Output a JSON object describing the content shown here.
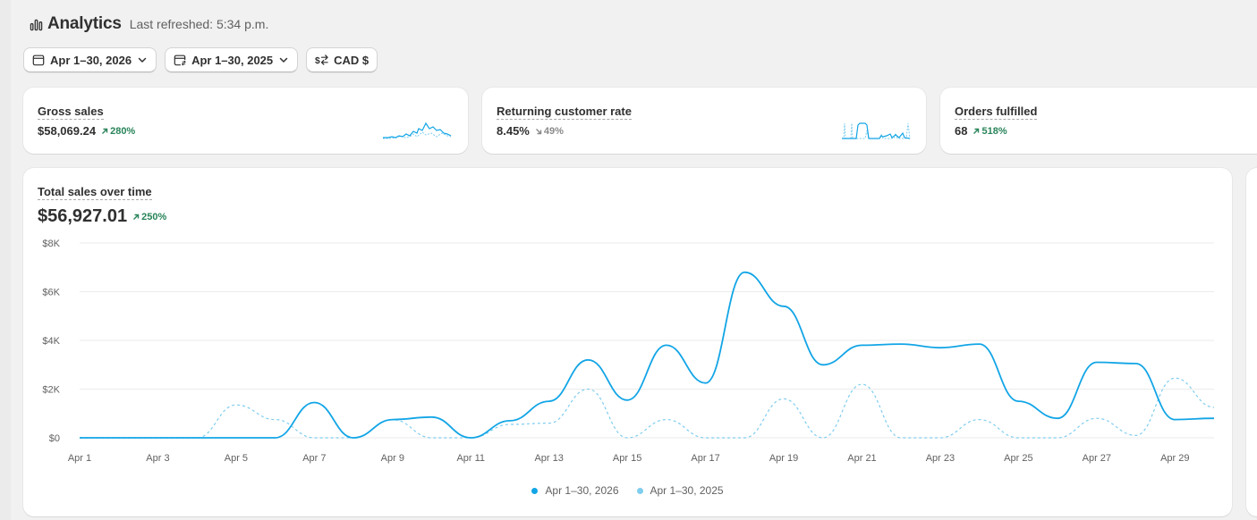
{
  "header": {
    "title": "Analytics",
    "refreshed": "Last refreshed: 5:34 p.m."
  },
  "filters": [
    {
      "label": "Apr 1–30, 2026",
      "icon": "calendar-icon"
    },
    {
      "label": "Apr 1–30, 2025",
      "icon": "calendar-compare-icon"
    },
    {
      "label": "CAD $",
      "icon": "currency-exchange-icon"
    }
  ],
  "metrics": [
    {
      "label": "Gross sales",
      "value": "$58,069.24",
      "delta": "280%",
      "direction": "up"
    },
    {
      "label": "Returning customer rate",
      "value": "8.45%",
      "delta": "49%",
      "direction": "down"
    },
    {
      "label": "Orders fulfilled",
      "value": "68",
      "delta": "518%",
      "direction": "up"
    }
  ],
  "colors": {
    "primary_series": "#12a5e6",
    "comparison_series": "#7fcdef",
    "positive": "#29845a",
    "neutral": "#8a8a8a",
    "gridline": "#ebebeb"
  },
  "chart": {
    "title": "Total sales over time",
    "total": "$56,927.01",
    "delta": "250%",
    "direction": "up"
  },
  "chart_data": {
    "type": "line",
    "title": "Total sales over time",
    "xlabel": "",
    "ylabel": "",
    "ylim": [
      0,
      8000
    ],
    "yticks": [
      0,
      2000,
      4000,
      6000,
      8000
    ],
    "ytick_labels": [
      "$0",
      "$2K",
      "$4K",
      "$6K",
      "$8K"
    ],
    "x": [
      "Apr 1",
      "Apr 2",
      "Apr 3",
      "Apr 4",
      "Apr 5",
      "Apr 6",
      "Apr 7",
      "Apr 8",
      "Apr 9",
      "Apr 10",
      "Apr 11",
      "Apr 12",
      "Apr 13",
      "Apr 14",
      "Apr 15",
      "Apr 16",
      "Apr 17",
      "Apr 18",
      "Apr 19",
      "Apr 20",
      "Apr 21",
      "Apr 22",
      "Apr 23",
      "Apr 24",
      "Apr 25",
      "Apr 26",
      "Apr 27",
      "Apr 28",
      "Apr 29",
      "Apr 30"
    ],
    "xtick_labels": [
      "Apr 1",
      "Apr 3",
      "Apr 5",
      "Apr 7",
      "Apr 9",
      "Apr 11",
      "Apr 13",
      "Apr 15",
      "Apr 17",
      "Apr 19",
      "Apr 21",
      "Apr 23",
      "Apr 25",
      "Apr 27",
      "Apr 29"
    ],
    "grid": true,
    "legend_position": "bottom-center",
    "series": [
      {
        "name": "Apr 1–30, 2026",
        "style": "solid",
        "values": [
          0,
          0,
          0,
          0,
          0,
          0,
          1450,
          0,
          750,
          850,
          0,
          700,
          1500,
          3200,
          1550,
          3800,
          2250,
          6800,
          5400,
          3000,
          3800,
          3850,
          3700,
          3850,
          1500,
          800,
          3100,
          3050,
          750,
          800
        ]
      },
      {
        "name": "Apr 1–30, 2025",
        "style": "dashed",
        "values": [
          0,
          0,
          0,
          0,
          1350,
          750,
          0,
          0,
          750,
          0,
          0,
          550,
          600,
          2000,
          0,
          750,
          0,
          0,
          1600,
          0,
          2200,
          0,
          0,
          750,
          0,
          0,
          800,
          100,
          2450,
          1250
        ]
      }
    ]
  }
}
